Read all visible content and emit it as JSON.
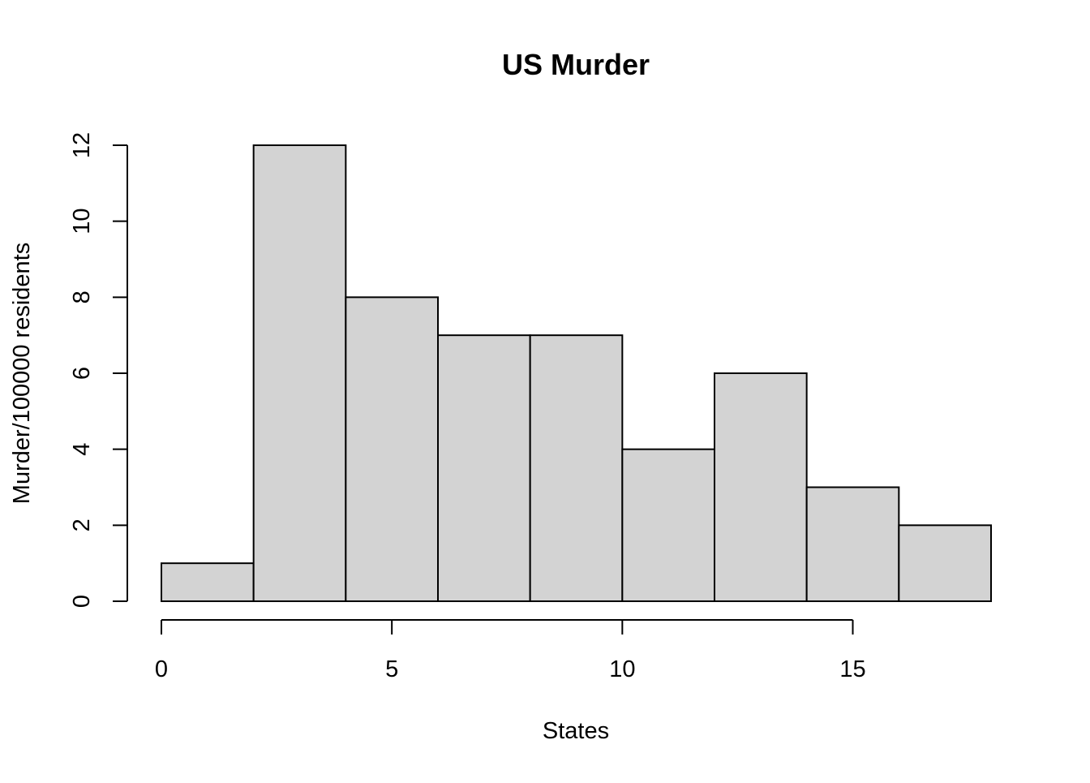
{
  "chart_data": {
    "type": "bar",
    "title": "US Murder",
    "xlabel": "States",
    "ylabel": "Murder/100000 residents",
    "bins": [
      {
        "start": 0,
        "end": 2,
        "count": 1
      },
      {
        "start": 2,
        "end": 4,
        "count": 12
      },
      {
        "start": 4,
        "end": 6,
        "count": 8
      },
      {
        "start": 6,
        "end": 8,
        "count": 7
      },
      {
        "start": 8,
        "end": 10,
        "count": 7
      },
      {
        "start": 10,
        "end": 12,
        "count": 4
      },
      {
        "start": 12,
        "end": 14,
        "count": 6
      },
      {
        "start": 14,
        "end": 16,
        "count": 3
      },
      {
        "start": 16,
        "end": 18,
        "count": 2
      }
    ],
    "xticks": [
      0,
      5,
      10,
      15
    ],
    "yticks": [
      0,
      2,
      4,
      6,
      8,
      10,
      12
    ],
    "xlim": [
      0,
      18
    ],
    "ylim": [
      0,
      12
    ],
    "grid": false,
    "bar_color": "#d3d3d3",
    "edge_color": "#000000"
  }
}
